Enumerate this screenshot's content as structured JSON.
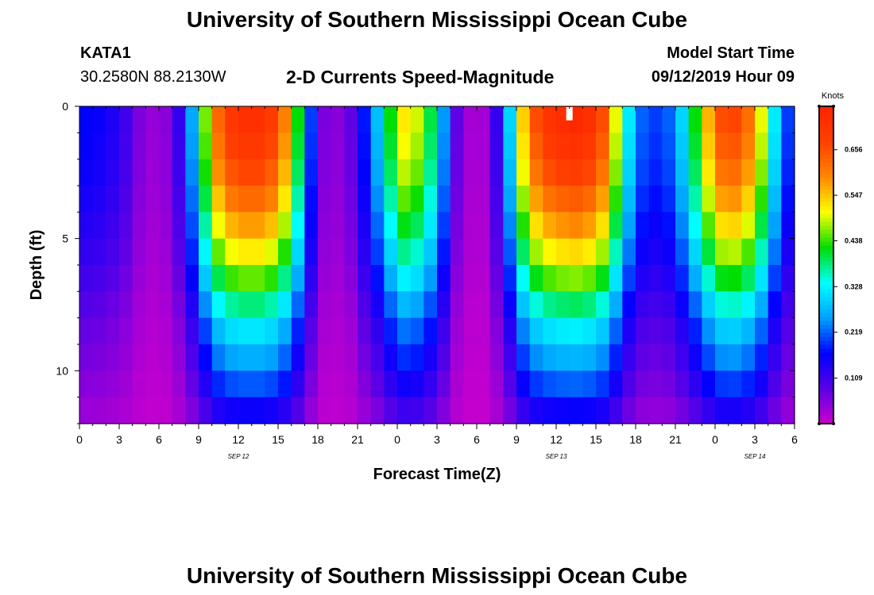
{
  "header": {
    "title": "University of Southern Mississippi Ocean Cube",
    "station": "KATA1",
    "coordinates": "30.2580N 88.2130W",
    "chart_title": "2-D Currents Speed-Magnitude",
    "model_start_label": "Model Start Time",
    "model_start_value": "09/12/2019 Hour 09"
  },
  "footer": {
    "title": "University of Southern Mississippi Ocean Cube"
  },
  "chart_data": {
    "type": "heatmap",
    "title": "2-D Currents Speed-Magnitude",
    "xlabel": "Forecast Time(Z)",
    "ylabel": "Depth (ft)",
    "x_unit": "hours since 2019-09-12 00Z",
    "xlim": [
      0,
      54
    ],
    "ylim": [
      0,
      12
    ],
    "x_ticks": [
      0,
      3,
      6,
      9,
      12,
      15,
      18,
      21,
      24,
      27,
      30,
      33,
      36,
      39,
      42,
      45,
      48,
      51,
      54
    ],
    "x_tick_labels": [
      "0",
      "3",
      "6",
      "9",
      "12",
      "15",
      "18",
      "21",
      "0",
      "3",
      "6",
      "9",
      "12",
      "15",
      "18",
      "21",
      "0",
      "3",
      "6"
    ],
    "y_ticks": [
      0,
      5,
      10
    ],
    "y_tick_labels": [
      "0",
      "5",
      "10"
    ],
    "date_labels": [
      {
        "x": 12,
        "label": "SEP 12"
      },
      {
        "x": 36,
        "label": "SEP 13"
      },
      {
        "x": 51,
        "label": "SEP 14"
      }
    ],
    "colorbar": {
      "label": "Knots",
      "min": 0.0,
      "max": 0.76,
      "ticks": [
        0.109,
        0.219,
        0.328,
        0.438,
        0.547,
        0.656
      ],
      "tick_labels": [
        "0.109",
        "0.219",
        "0.328",
        "0.438",
        "0.547",
        "0.656"
      ]
    },
    "x_start": 0.5,
    "x_step": 1,
    "layer_depths_ft": [
      0.5,
      1.5,
      2.5,
      3.5,
      4.5,
      5.5,
      6.5,
      7.5,
      8.5,
      9.5,
      10.5,
      11.5
    ],
    "max_marker": {
      "x": 37,
      "depth": 0.25
    },
    "speed_profile_knots": [
      0.17,
      0.16,
      0.14,
      0.11,
      0.06,
      0.04,
      0.05,
      0.12,
      0.26,
      0.46,
      0.63,
      0.7,
      0.72,
      0.72,
      0.69,
      0.6,
      0.42,
      0.2,
      0.06,
      0.05,
      0.08,
      0.18,
      0.28,
      0.42,
      0.52,
      0.49,
      0.4,
      0.25,
      0.08,
      0.03,
      0.03,
      0.12,
      0.3,
      0.54,
      0.66,
      0.71,
      0.73,
      0.74,
      0.72,
      0.66,
      0.5,
      0.32,
      0.22,
      0.2,
      0.22,
      0.3,
      0.42,
      0.56,
      0.66,
      0.67,
      0.62,
      0.5,
      0.32,
      0.2
    ],
    "depth_fraction": [
      1.0,
      0.97,
      0.93,
      0.87,
      0.8,
      0.72,
      0.63,
      0.53,
      0.44,
      0.37,
      0.3,
      0.22
    ]
  }
}
